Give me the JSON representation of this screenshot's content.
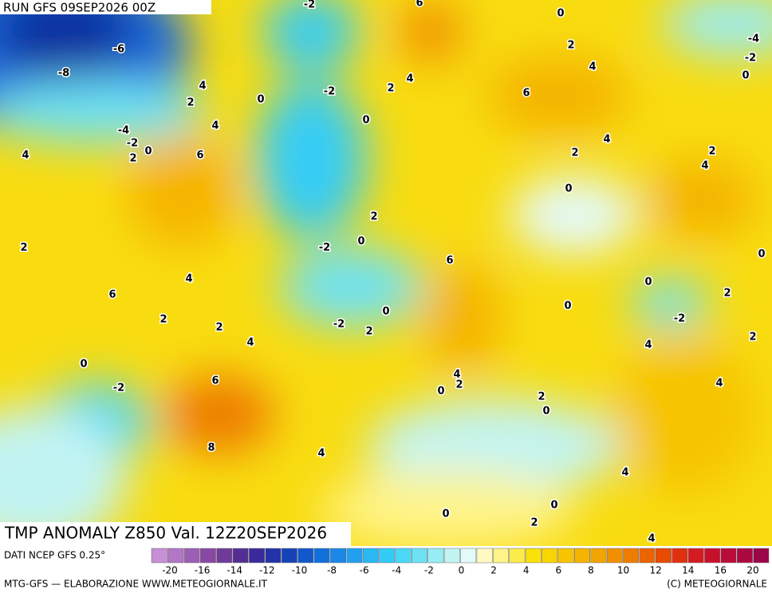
{
  "header": {
    "run": "RUN GFS 09SEP2026 00Z"
  },
  "footer": {
    "title": "TMP ANOMALY Z850 Val. 12Z20SEP2026",
    "source": "DATI NCEP GFS 0.25°",
    "credit": "MTG-GFS — ELABORAZIONE WWW.METEOGIORNALE.IT",
    "copyright": "(C) METEOGIORNALE"
  },
  "colorbar": {
    "colors": [
      "#c78fd6",
      "#b277c6",
      "#9d5fb5",
      "#8848a4",
      "#703a98",
      "#552e94",
      "#3b2a9c",
      "#2233a8",
      "#1544b8",
      "#1058cc",
      "#1270dc",
      "#1a88e8",
      "#22a0f0",
      "#2ab8f4",
      "#34ccf6",
      "#4ad8f6",
      "#6ee2f4",
      "#98ecf4",
      "#c2f4f4",
      "#e4fafa",
      "#fffbc0",
      "#fff48a",
      "#fdeb4a",
      "#fbe10a",
      "#f8d400",
      "#f6c400",
      "#f4b400",
      "#f2a400",
      "#f09000",
      "#ee7c00",
      "#ec6400",
      "#e84a00",
      "#e03010",
      "#d41c20",
      "#c8102c",
      "#ba0c38",
      "#ac0840",
      "#9c0648"
    ],
    "labels": [
      "-20",
      "-16",
      "-14",
      "-12",
      "-10",
      "-8",
      "-6",
      "-4",
      "-2",
      "0",
      "2",
      "4",
      "6",
      "8",
      "10",
      "12",
      "14",
      "16",
      "20"
    ]
  },
  "map": {
    "labels": [
      "-2",
      "6",
      "0",
      "-4",
      "-6",
      "2",
      "-2",
      "-8",
      "4",
      "0",
      "4",
      "2",
      "4",
      "0",
      "-2",
      "6",
      "2",
      "0",
      "4",
      "-4",
      "4",
      "-2",
      "0",
      "2",
      "2",
      "4",
      "6",
      "2",
      "4",
      "0",
      "2",
      "0",
      "-2",
      "2",
      "0",
      "6",
      "4",
      "0",
      "2",
      "6",
      "0",
      "0",
      "2",
      "-2",
      "2",
      "-2",
      "2",
      "2",
      "4",
      "4",
      "0",
      "4",
      "6",
      "2",
      "-2",
      "0",
      "4",
      "2",
      "0",
      "8",
      "4",
      "4",
      "0",
      "0",
      "2",
      "4"
    ]
  }
}
